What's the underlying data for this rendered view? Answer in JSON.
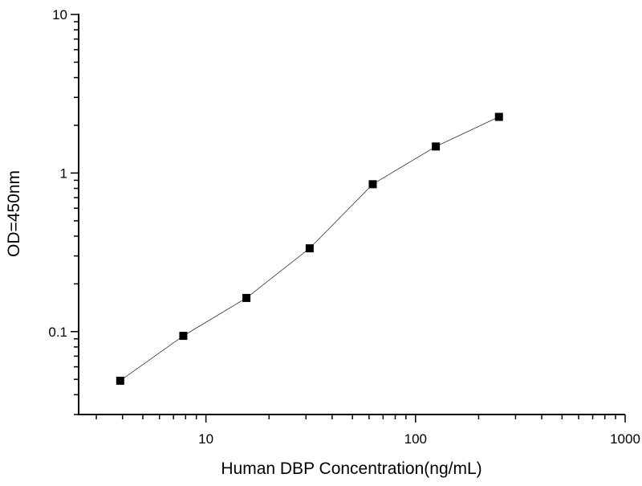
{
  "chart_data": {
    "type": "line",
    "title": "",
    "xlabel": "Human DBP Concentration(ng/mL)",
    "ylabel": "OD=450nm",
    "x_scale": "log",
    "y_scale": "log",
    "xlim": [
      2.47,
      1000
    ],
    "ylim": [
      0.03,
      10
    ],
    "grid": false,
    "x_ticks": [
      {
        "value": 10,
        "label": "10"
      },
      {
        "value": 100,
        "label": "100"
      },
      {
        "value": 1000,
        "label": "1000"
      }
    ],
    "y_ticks": [
      {
        "value": 0.1,
        "label": "0.1"
      },
      {
        "value": 1,
        "label": "1"
      },
      {
        "value": 10,
        "label": "10"
      }
    ],
    "series": [
      {
        "marker": "square",
        "color": "#000000",
        "x": [
          3.9,
          7.8,
          15.6,
          31.25,
          62.5,
          125,
          250
        ],
        "y": [
          0.049,
          0.094,
          0.163,
          0.335,
          0.85,
          1.47,
          2.26
        ]
      }
    ]
  }
}
